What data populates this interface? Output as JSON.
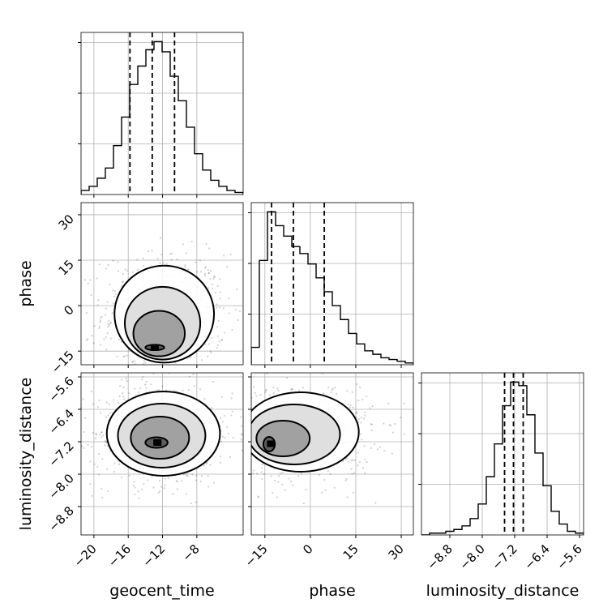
{
  "chart_data": {
    "type": "corner",
    "parameters": [
      "geocent_time",
      "phase",
      "luminosity_distance"
    ],
    "axis_labels": {
      "geocent_time": "geocent_time",
      "phase": "phase",
      "luminosity_distance": "luminosity_distance"
    },
    "ranges": {
      "geocent_time": [
        -21.5,
        -2.6
      ],
      "phase": [
        -19.5,
        34.0
      ],
      "luminosity_distance": [
        -9.5,
        -5.5
      ]
    },
    "ticks": {
      "geocent_time": [
        "-20",
        "-16",
        "-12",
        "-8"
      ],
      "phase": [
        "-15",
        "0",
        "15",
        "30"
      ],
      "luminosity_distance": [
        "-8.8",
        "-8.0",
        "-7.2",
        "-6.4",
        "-5.6"
      ]
    },
    "quantiles": {
      "geocent_time": [
        -15.8,
        -13.2,
        -10.6
      ],
      "phase": [
        -12.8,
        -5.6,
        4.6
      ],
      "luminosity_distance": [
        -7.45,
        -7.23,
        -6.99
      ]
    },
    "histograms": {
      "geocent_time": {
        "bin_edges": [
          -21.5,
          -20.555,
          -19.61,
          -18.665,
          -17.72,
          -16.775,
          -15.83,
          -14.885,
          -13.94,
          -12.995,
          -12.05,
          -11.105,
          -10.16,
          -9.215,
          -8.27,
          -7.325,
          -6.38,
          -5.435,
          -4.49,
          -3.545,
          -2.6
        ],
        "counts": [
          2,
          4,
          8,
          13,
          24,
          38,
          54,
          63,
          71,
          75,
          70,
          58,
          46,
          33,
          20,
          12,
          7,
          4,
          2,
          1
        ]
      },
      "phase": {
        "bin_edges": [
          -19.5,
          -16.825,
          -14.15,
          -11.475,
          -8.8,
          -6.125,
          -3.45,
          -0.775,
          1.9,
          4.575,
          7.25,
          9.925,
          12.6,
          15.275,
          17.95,
          20.625,
          23.3,
          25.975,
          28.65,
          31.325,
          34.0
        ],
        "counts": [
          10,
          60,
          88,
          80,
          74,
          68,
          64,
          58,
          50,
          42,
          34,
          26,
          18,
          12,
          8,
          6,
          4,
          3,
          2,
          1
        ]
      },
      "luminosity_distance": {
        "bin_edges": [
          -9.5,
          -9.3,
          -9.1,
          -8.9,
          -8.7,
          -8.5,
          -8.3,
          -8.1,
          -7.9,
          -7.7,
          -7.5,
          -7.3,
          -7.1,
          -6.9,
          -6.7,
          -6.5,
          -6.3,
          -6.1,
          -5.9,
          -5.7,
          -5.5
        ],
        "counts": [
          0,
          1,
          1,
          2,
          3,
          5,
          9,
          17,
          32,
          50,
          71,
          84,
          82,
          66,
          45,
          27,
          13,
          6,
          2,
          1
        ]
      }
    },
    "contours": [
      {
        "x": "geocent_time",
        "y": "phase",
        "peak": [
          -12.9,
          -13.8
        ],
        "levels": [
          {
            "cx": -12.9,
            "cy": -13.8,
            "rx": 1.1,
            "ry": 0.9
          },
          {
            "cx": -12.4,
            "cy": -9.2,
            "rx": 3.0,
            "ry": 7.5
          },
          {
            "cx": -12.0,
            "cy": -5.8,
            "rx": 4.4,
            "ry": 12.0
          },
          {
            "cx": -11.8,
            "cy": -2.8,
            "rx": 5.8,
            "ry": 16.0
          }
        ]
      },
      {
        "x": "geocent_time",
        "y": "luminosity_distance",
        "peak": [
          -12.6,
          -7.22
        ],
        "levels": [
          {
            "cx": -12.7,
            "cy": -7.22,
            "rx": 1.3,
            "ry": 0.13
          },
          {
            "cx": -12.3,
            "cy": -7.1,
            "rx": 3.4,
            "ry": 0.52
          },
          {
            "cx": -12.1,
            "cy": -7.05,
            "rx": 5.1,
            "ry": 0.79
          },
          {
            "cx": -11.9,
            "cy": -7.0,
            "rx": 6.6,
            "ry": 1.04
          }
        ]
      },
      {
        "x": "phase",
        "y": "luminosity_distance",
        "peak": [
          -13.0,
          -7.25
        ],
        "levels": [
          {
            "cx": -13.6,
            "cy": -7.26,
            "rx": 1.9,
            "ry": 0.18
          },
          {
            "cx": -9.0,
            "cy": -7.12,
            "rx": 8.8,
            "ry": 0.44
          },
          {
            "cx": -5.4,
            "cy": -7.02,
            "rx": 15.2,
            "ry": 0.74
          },
          {
            "cx": -3.2,
            "cy": -6.96,
            "rx": 19.2,
            "ry": 0.98
          }
        ]
      }
    ],
    "grid": true,
    "legend": "none"
  }
}
